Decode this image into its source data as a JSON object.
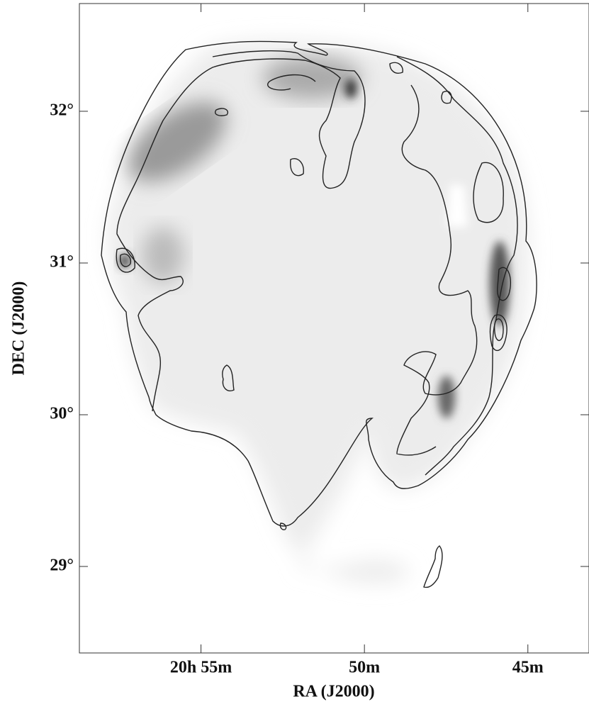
{
  "chart_data": {
    "type": "image",
    "xlabel": "RA (J2000)",
    "ylabel": "DEC (J2000)",
    "xlim": [
      58.72,
      43.13
    ],
    "ylim": [
      28.43,
      32.71
    ],
    "xticks": [
      {
        "value": 55,
        "label": "20h 55m"
      },
      {
        "value": 50,
        "label": "50m"
      },
      {
        "value": 45,
        "label": "45m"
      }
    ],
    "yticks": [
      {
        "value": 29,
        "label": "29°"
      },
      {
        "value": 30,
        "label": "30°"
      },
      {
        "value": 31,
        "label": "31°"
      },
      {
        "value": 32,
        "label": "32°"
      }
    ]
  }
}
